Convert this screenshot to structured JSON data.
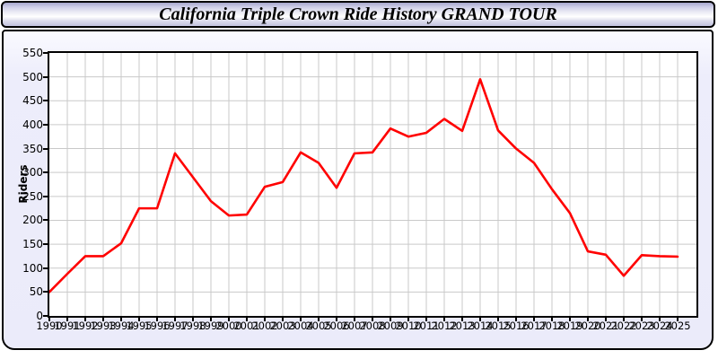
{
  "window": {
    "title": "California Triple Crown Ride History GRAND TOUR"
  },
  "chart_data": {
    "type": "line",
    "title": "California Triple Crown Ride History GRAND TOUR",
    "ylabel": "Riders",
    "xlabel": "",
    "x": [
      1990,
      1991,
      1992,
      1993,
      1994,
      1995,
      1996,
      1997,
      1998,
      1999,
      2000,
      2001,
      2002,
      2003,
      2004,
      2005,
      2006,
      2007,
      2008,
      2009,
      2010,
      2011,
      2012,
      2013,
      2014,
      2015,
      2016,
      2017,
      2018,
      2019,
      2020,
      2021,
      2022,
      2023,
      2024,
      2025
    ],
    "series": [
      {
        "name": "Riders",
        "color": "#ff0000",
        "values": [
          50,
          88,
          125,
          125,
          152,
          225,
          225,
          340,
          290,
          240,
          210,
          212,
          270,
          280,
          342,
          320,
          268,
          340,
          342,
          392,
          375,
          383,
          412,
          387,
          495,
          388,
          350,
          320,
          265,
          215,
          135,
          128,
          84,
          127,
          125,
          124
        ]
      }
    ],
    "ylim": [
      0,
      550
    ],
    "yticks": [
      0,
      50,
      100,
      150,
      200,
      250,
      300,
      350,
      400,
      450,
      500,
      550
    ],
    "grid": true,
    "legend_position": "none",
    "plot_bg": "#ffffff",
    "panel_bg": "#ebebfa",
    "grid_color": "#c9c9c9",
    "axis_color": "#000000"
  }
}
